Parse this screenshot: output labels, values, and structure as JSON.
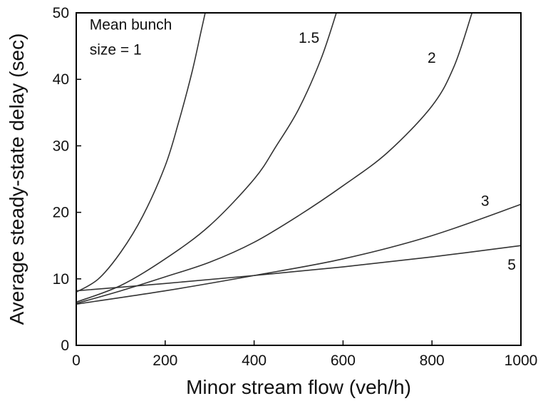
{
  "chart_data": {
    "type": "line",
    "xlabel": "Minor stream flow  (veh/h)",
    "ylabel": "Average steady-state delay (sec)",
    "xlim": [
      0,
      1000
    ],
    "ylim": [
      0,
      50
    ],
    "xticks": [
      "0",
      "200",
      "400",
      "600",
      "800",
      "1000"
    ],
    "yticks": [
      "0",
      "10",
      "20",
      "30",
      "40",
      "50"
    ],
    "grid": false,
    "legend": "none",
    "series": [
      {
        "name": "1",
        "label": "Mean bunch size = 1",
        "x": [
          0,
          50,
          100,
          150,
          200,
          230,
          260,
          280,
          290
        ],
        "y": [
          8,
          10,
          14,
          19.5,
          27,
          33.5,
          41,
          47,
          50
        ]
      },
      {
        "name": "1.5",
        "label": "1.5",
        "x": [
          0,
          100,
          200,
          300,
          400,
          450,
          500,
          550,
          585
        ],
        "y": [
          6.5,
          9,
          13,
          18,
          25,
          30,
          35.5,
          43,
          50
        ]
      },
      {
        "name": "2",
        "label": "2",
        "x": [
          0,
          100,
          200,
          300,
          400,
          500,
          600,
          700,
          800,
          850,
          890
        ],
        "y": [
          6.3,
          8.2,
          10.3,
          12.5,
          15.5,
          19.5,
          24,
          29,
          36,
          42,
          50
        ]
      },
      {
        "name": "3",
        "label": "3",
        "x": [
          0,
          200,
          400,
          600,
          800,
          1000
        ],
        "y": [
          6.2,
          8.2,
          10.5,
          13,
          16.5,
          21.2
        ]
      },
      {
        "name": "5",
        "label": "5",
        "x": [
          0,
          200,
          400,
          600,
          800,
          1000
        ],
        "y": [
          8.2,
          9.3,
          10.5,
          11.8,
          13.3,
          15
        ]
      }
    ],
    "annotations": [
      {
        "text": "Mean bunch",
        "x": 30,
        "y": 47.5
      },
      {
        "text": "size = 1",
        "x": 30,
        "y": 43.7
      },
      {
        "text": "1.5",
        "x": 500,
        "y": 45.5
      },
      {
        "text": "2",
        "x": 790,
        "y": 42.5
      },
      {
        "text": "3",
        "x": 910,
        "y": 21
      },
      {
        "text": "5",
        "x": 970,
        "y": 11.4
      }
    ],
    "colors": {
      "line": "#333333",
      "axis": "#000000",
      "text": "#111111"
    }
  }
}
